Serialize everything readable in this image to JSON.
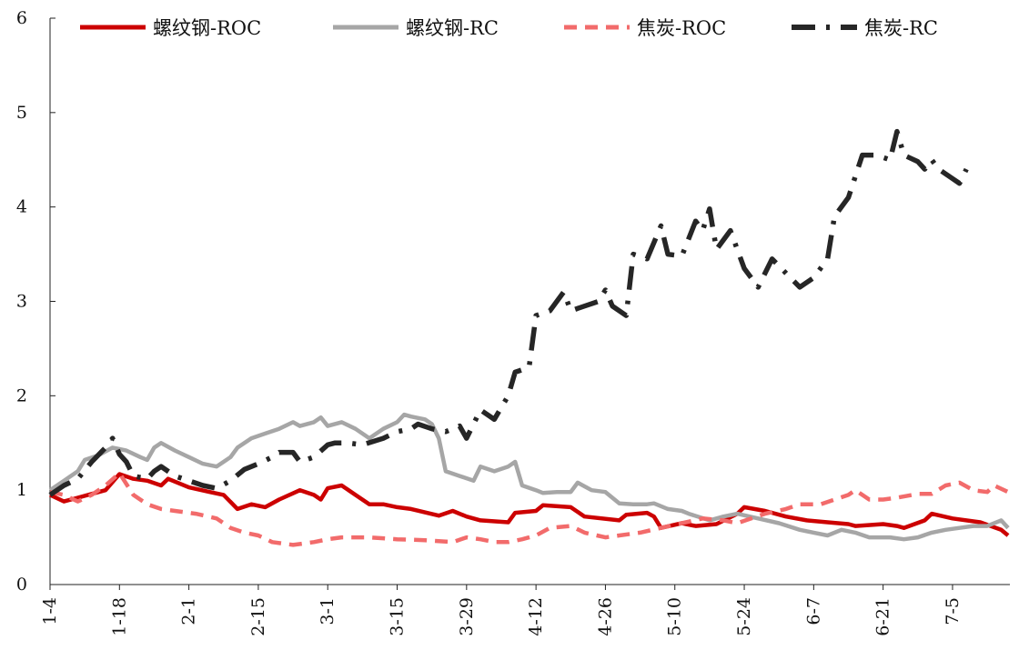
{
  "chart_data": {
    "type": "line",
    "title": "",
    "xlabel": "",
    "ylabel": "",
    "ylim": [
      0,
      6
    ],
    "yticks": [
      "0",
      "1",
      "2",
      "3",
      "4",
      "5",
      "6"
    ],
    "xlim": [
      0,
      138
    ],
    "xticks": [
      {
        "x": 0,
        "label": "1-4"
      },
      {
        "x": 10,
        "label": "1-18"
      },
      {
        "x": 20,
        "label": "2-1"
      },
      {
        "x": 30,
        "label": "2-15"
      },
      {
        "x": 40,
        "label": "3-1"
      },
      {
        "x": 50,
        "label": "3-15"
      },
      {
        "x": 60,
        "label": "3-29"
      },
      {
        "x": 70,
        "label": "4-12"
      },
      {
        "x": 80,
        "label": "4-26"
      },
      {
        "x": 90,
        "label": "5-10"
      },
      {
        "x": 100,
        "label": "5-24"
      },
      {
        "x": 110,
        "label": "6-7"
      },
      {
        "x": 120,
        "label": "6-21"
      },
      {
        "x": 130,
        "label": "7-5"
      }
    ],
    "legend_position": "top",
    "grid": false,
    "series": [
      {
        "name": "螺纹钢-ROC",
        "color": "#cc0000",
        "style": "solid",
        "points": [
          [
            0,
            0.95
          ],
          [
            2,
            0.88
          ],
          [
            4,
            0.92
          ],
          [
            6,
            0.96
          ],
          [
            8,
            1.0
          ],
          [
            10,
            1.17
          ],
          [
            12,
            1.12
          ],
          [
            14,
            1.1
          ],
          [
            16,
            1.05
          ],
          [
            17,
            1.12
          ],
          [
            20,
            1.03
          ],
          [
            23,
            0.98
          ],
          [
            25,
            0.95
          ],
          [
            27,
            0.8
          ],
          [
            29,
            0.85
          ],
          [
            31,
            0.82
          ],
          [
            33,
            0.9
          ],
          [
            36,
            1.0
          ],
          [
            38,
            0.95
          ],
          [
            39,
            0.9
          ],
          [
            40,
            1.02
          ],
          [
            42,
            1.05
          ],
          [
            44,
            0.95
          ],
          [
            46,
            0.85
          ],
          [
            48,
            0.85
          ],
          [
            50,
            0.82
          ],
          [
            52,
            0.8
          ],
          [
            56,
            0.73
          ],
          [
            58,
            0.78
          ],
          [
            60,
            0.72
          ],
          [
            62,
            0.68
          ],
          [
            66,
            0.66
          ],
          [
            67,
            0.76
          ],
          [
            70,
            0.78
          ],
          [
            71,
            0.84
          ],
          [
            75,
            0.82
          ],
          [
            77,
            0.72
          ],
          [
            82,
            0.68
          ],
          [
            83,
            0.74
          ],
          [
            86,
            0.76
          ],
          [
            87,
            0.72
          ],
          [
            88,
            0.6
          ],
          [
            91,
            0.65
          ],
          [
            93,
            0.62
          ],
          [
            96,
            0.64
          ],
          [
            99,
            0.75
          ],
          [
            100,
            0.82
          ],
          [
            103,
            0.78
          ],
          [
            106,
            0.72
          ],
          [
            109,
            0.68
          ],
          [
            112,
            0.66
          ],
          [
            115,
            0.64
          ],
          [
            116,
            0.62
          ],
          [
            120,
            0.64
          ],
          [
            122,
            0.62
          ],
          [
            123,
            0.6
          ],
          [
            126,
            0.68
          ],
          [
            127,
            0.75
          ],
          [
            130,
            0.7
          ],
          [
            134,
            0.66
          ],
          [
            137,
            0.58
          ],
          [
            138,
            0.52
          ]
        ]
      },
      {
        "name": "螺纹钢-RC",
        "color": "#a6a6a6",
        "style": "solid",
        "points": [
          [
            0,
            1.0
          ],
          [
            2,
            1.1
          ],
          [
            4,
            1.2
          ],
          [
            5,
            1.32
          ],
          [
            7,
            1.37
          ],
          [
            9,
            1.45
          ],
          [
            11,
            1.42
          ],
          [
            13,
            1.35
          ],
          [
            14,
            1.32
          ],
          [
            15,
            1.45
          ],
          [
            16,
            1.5
          ],
          [
            18,
            1.42
          ],
          [
            20,
            1.35
          ],
          [
            22,
            1.28
          ],
          [
            24,
            1.25
          ],
          [
            26,
            1.35
          ],
          [
            27,
            1.45
          ],
          [
            29,
            1.55
          ],
          [
            31,
            1.6
          ],
          [
            33,
            1.65
          ],
          [
            35,
            1.72
          ],
          [
            36,
            1.68
          ],
          [
            38,
            1.72
          ],
          [
            39,
            1.77
          ],
          [
            40,
            1.68
          ],
          [
            42,
            1.72
          ],
          [
            44,
            1.65
          ],
          [
            46,
            1.55
          ],
          [
            48,
            1.65
          ],
          [
            50,
            1.72
          ],
          [
            51,
            1.8
          ],
          [
            52,
            1.78
          ],
          [
            54,
            1.75
          ],
          [
            55,
            1.7
          ],
          [
            56,
            1.55
          ],
          [
            57,
            1.2
          ],
          [
            59,
            1.15
          ],
          [
            61,
            1.1
          ],
          [
            62,
            1.25
          ],
          [
            64,
            1.2
          ],
          [
            66,
            1.25
          ],
          [
            67,
            1.3
          ],
          [
            68,
            1.05
          ],
          [
            70,
            1.0
          ],
          [
            71,
            0.97
          ],
          [
            73,
            0.98
          ],
          [
            75,
            0.98
          ],
          [
            76,
            1.08
          ],
          [
            78,
            1.0
          ],
          [
            80,
            0.98
          ],
          [
            82,
            0.86
          ],
          [
            84,
            0.85
          ],
          [
            86,
            0.85
          ],
          [
            87,
            0.86
          ],
          [
            89,
            0.8
          ],
          [
            91,
            0.78
          ],
          [
            92,
            0.75
          ],
          [
            95,
            0.68
          ],
          [
            97,
            0.72
          ],
          [
            99,
            0.75
          ],
          [
            102,
            0.7
          ],
          [
            105,
            0.65
          ],
          [
            108,
            0.58
          ],
          [
            110,
            0.55
          ],
          [
            112,
            0.52
          ],
          [
            114,
            0.58
          ],
          [
            116,
            0.55
          ],
          [
            118,
            0.5
          ],
          [
            121,
            0.5
          ],
          [
            123,
            0.48
          ],
          [
            125,
            0.5
          ],
          [
            127,
            0.55
          ],
          [
            129,
            0.58
          ],
          [
            131,
            0.6
          ],
          [
            133,
            0.62
          ],
          [
            135,
            0.62
          ],
          [
            137,
            0.68
          ],
          [
            138,
            0.6
          ]
        ]
      },
      {
        "name": "焦炭-ROC",
        "color": "#f26b6b",
        "style": "dashed",
        "points": [
          [
            0,
            0.98
          ],
          [
            2,
            0.95
          ],
          [
            4,
            0.88
          ],
          [
            6,
            0.95
          ],
          [
            8,
            1.05
          ],
          [
            10,
            1.18
          ],
          [
            12,
            0.95
          ],
          [
            14,
            0.85
          ],
          [
            16,
            0.8
          ],
          [
            18,
            0.78
          ],
          [
            21,
            0.75
          ],
          [
            24,
            0.7
          ],
          [
            26,
            0.6
          ],
          [
            28,
            0.55
          ],
          [
            30,
            0.52
          ],
          [
            32,
            0.45
          ],
          [
            35,
            0.42
          ],
          [
            38,
            0.45
          ],
          [
            40,
            0.48
          ],
          [
            42,
            0.5
          ],
          [
            46,
            0.5
          ],
          [
            50,
            0.48
          ],
          [
            54,
            0.47
          ],
          [
            58,
            0.45
          ],
          [
            60,
            0.5
          ],
          [
            62,
            0.48
          ],
          [
            64,
            0.45
          ],
          [
            66,
            0.45
          ],
          [
            68,
            0.48
          ],
          [
            70,
            0.52
          ],
          [
            72,
            0.6
          ],
          [
            75,
            0.62
          ],
          [
            77,
            0.55
          ],
          [
            80,
            0.5
          ],
          [
            82,
            0.52
          ],
          [
            85,
            0.55
          ],
          [
            88,
            0.6
          ],
          [
            91,
            0.65
          ],
          [
            94,
            0.7
          ],
          [
            97,
            0.68
          ],
          [
            99,
            0.65
          ],
          [
            101,
            0.7
          ],
          [
            103,
            0.75
          ],
          [
            106,
            0.8
          ],
          [
            108,
            0.85
          ],
          [
            111,
            0.85
          ],
          [
            113,
            0.9
          ],
          [
            115,
            0.95
          ],
          [
            116,
            1.0
          ],
          [
            118,
            0.9
          ],
          [
            120,
            0.9
          ],
          [
            122,
            0.92
          ],
          [
            125,
            0.96
          ],
          [
            127,
            0.96
          ],
          [
            129,
            1.05
          ],
          [
            131,
            1.08
          ],
          [
            133,
            1.0
          ],
          [
            135,
            0.98
          ],
          [
            136,
            1.05
          ],
          [
            138,
            0.98
          ]
        ]
      },
      {
        "name": "焦炭-RC",
        "color": "#262626",
        "style": "dashdot",
        "points": [
          [
            0,
            0.95
          ],
          [
            2,
            1.05
          ],
          [
            4,
            1.12
          ],
          [
            6,
            1.3
          ],
          [
            8,
            1.45
          ],
          [
            9,
            1.55
          ],
          [
            10,
            1.38
          ],
          [
            11,
            1.3
          ],
          [
            12,
            1.15
          ],
          [
            14,
            1.12
          ],
          [
            15,
            1.2
          ],
          [
            16,
            1.25
          ],
          [
            18,
            1.15
          ],
          [
            20,
            1.1
          ],
          [
            22,
            1.05
          ],
          [
            24,
            1.02
          ],
          [
            26,
            1.1
          ],
          [
            28,
            1.22
          ],
          [
            30,
            1.28
          ],
          [
            32,
            1.35
          ],
          [
            33,
            1.4
          ],
          [
            35,
            1.4
          ],
          [
            36,
            1.3
          ],
          [
            38,
            1.35
          ],
          [
            40,
            1.48
          ],
          [
            41,
            1.5
          ],
          [
            43,
            1.5
          ],
          [
            45,
            1.48
          ],
          [
            48,
            1.55
          ],
          [
            50,
            1.62
          ],
          [
            52,
            1.65
          ],
          [
            53,
            1.7
          ],
          [
            55,
            1.65
          ],
          [
            57,
            1.62
          ],
          [
            59,
            1.68
          ],
          [
            60,
            1.55
          ],
          [
            62,
            1.85
          ],
          [
            64,
            1.75
          ],
          [
            66,
            2.0
          ],
          [
            67,
            2.25
          ],
          [
            69,
            2.3
          ],
          [
            70,
            2.85
          ],
          [
            72,
            2.9
          ],
          [
            74,
            3.1
          ],
          [
            75,
            2.9
          ],
          [
            77,
            2.95
          ],
          [
            79,
            3.0
          ],
          [
            80,
            3.12
          ],
          [
            81,
            2.95
          ],
          [
            83,
            2.85
          ],
          [
            84,
            3.5
          ],
          [
            86,
            3.45
          ],
          [
            88,
            3.8
          ],
          [
            89,
            3.5
          ],
          [
            91,
            3.48
          ],
          [
            93,
            3.85
          ],
          [
            94,
            3.75
          ],
          [
            95,
            3.98
          ],
          [
            96,
            3.55
          ],
          [
            98,
            3.75
          ],
          [
            100,
            3.35
          ],
          [
            102,
            3.15
          ],
          [
            104,
            3.45
          ],
          [
            106,
            3.3
          ],
          [
            108,
            3.15
          ],
          [
            110,
            3.25
          ],
          [
            112,
            3.45
          ],
          [
            113,
            3.9
          ],
          [
            115,
            4.1
          ],
          [
            117,
            4.55
          ],
          [
            119,
            4.55
          ],
          [
            121,
            4.5
          ],
          [
            122,
            4.8
          ],
          [
            123,
            4.55
          ],
          [
            125,
            4.48
          ],
          [
            126,
            4.4
          ],
          [
            127,
            4.5
          ],
          [
            128,
            4.4
          ],
          [
            130,
            4.3
          ],
          [
            131,
            4.25
          ],
          [
            132,
            4.4
          ]
        ]
      }
    ]
  }
}
